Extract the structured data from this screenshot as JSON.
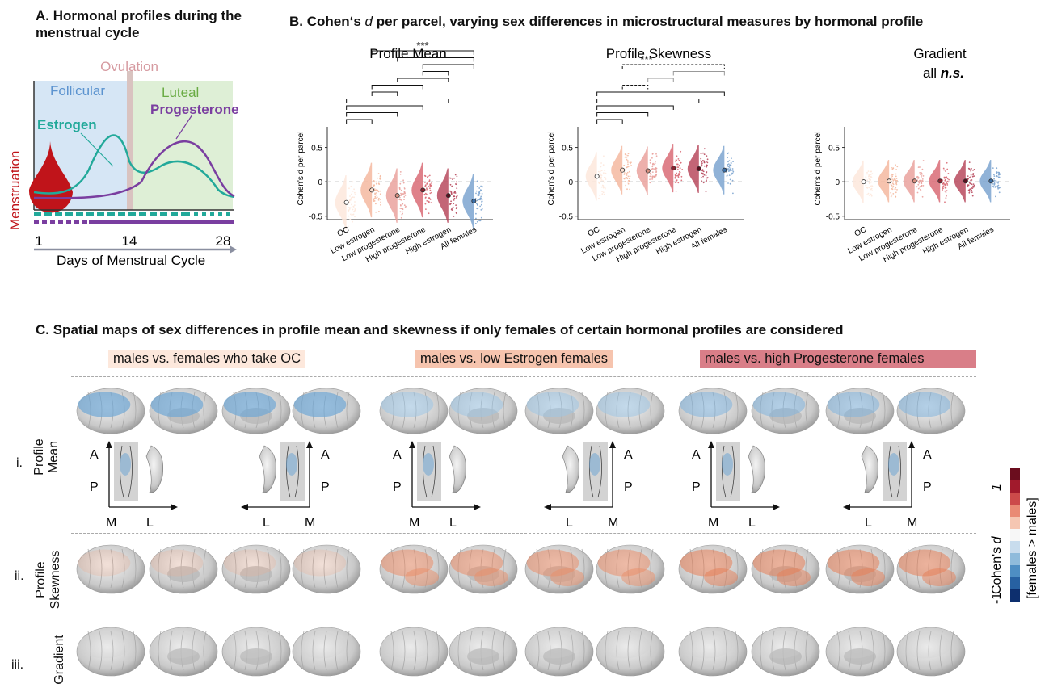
{
  "panelA": {
    "title": "A. Hormonal profiles during the menstrual cycle",
    "ovulation": "Ovulation",
    "follicular": "Follicular",
    "luteal": "Luteal",
    "estrogen": "Estrogen",
    "progesterone": "Progesterone",
    "menstruation": "Menstruation",
    "ticks": [
      "1",
      "14",
      "28"
    ],
    "xlabel": "Days of Menstrual Cycle"
  },
  "panelB": {
    "title": "B. Cohen‘s d per parcel, varying sex differences in microstructural measures by hormonal profile",
    "title_pre": "B. Cohen‘s ",
    "title_d": "d",
    "title_post": " per parcel, varying sex differences in microstructural measures by hormonal profile",
    "ylabel": "Cohen's d per parcel",
    "sig_label": "***",
    "gradient_note_pre": "all",
    "gradient_note": "n.s."
  },
  "chart_data": [
    {
      "type": "scatter",
      "title": "Profile Mean",
      "ylabel": "Cohen's d per parcel",
      "categories": [
        "OC",
        "Low estrogen",
        "Low progesterone",
        "High progesterone",
        "High estrogen",
        "All females"
      ],
      "values": [
        -0.3,
        -0.12,
        -0.2,
        -0.12,
        -0.2,
        -0.28
      ],
      "ylim": [
        -0.55,
        0.8
      ],
      "yticks": [
        -0.5,
        0,
        0.5
      ]
    },
    {
      "type": "scatter",
      "title": "Profile Skewness",
      "ylabel": "Cohen's d per parcel",
      "categories": [
        "OC",
        "Low estrogen",
        "Low progesterone",
        "High progesterone",
        "High estrogen",
        "All females"
      ],
      "values": [
        0.08,
        0.17,
        0.16,
        0.2,
        0.19,
        0.17
      ],
      "ylim": [
        -0.55,
        0.8
      ],
      "yticks": [
        -0.5,
        0,
        0.5
      ]
    },
    {
      "type": "scatter",
      "title": "Gradient",
      "ylabel": "Cohen's d per parcel",
      "categories": [
        "OC",
        "Low estrogen",
        "Low progesterone",
        "High progesterone",
        "High estrogen",
        "All females"
      ],
      "values": [
        0.0,
        0.01,
        0.01,
        0.01,
        0.01,
        0.01
      ],
      "ylim": [
        -0.55,
        0.8
      ],
      "yticks": [
        -0.5,
        0,
        0.5
      ]
    }
  ],
  "panelC": {
    "title": "C. Spatial maps of sex differences in profile mean and skewness if only females of certain hormonal profiles are considered",
    "groups": [
      "males vs. females who take OC",
      "males vs. low Estrogen females",
      "males vs. high Progesterone females"
    ],
    "rows": [
      {
        "roman": "i.",
        "label1": "Profile",
        "label2": "Mean"
      },
      {
        "roman": "ii.",
        "label1": "Profile",
        "label2": "Skewness"
      },
      {
        "roman": "iii.",
        "label1": "Gradient",
        "label2": ""
      }
    ],
    "axis_letters": {
      "A": "A",
      "P": "P",
      "M": "M",
      "L": "L"
    }
  },
  "colorbar": {
    "label_pre": "Cohen's ",
    "label_d": "d",
    "max": "1",
    "min": "-1",
    "sublabel": "[females > males]"
  },
  "colors": {
    "follicular_bg": "#d6e6f5",
    "luteal_bg": "#deefd6",
    "estrogen": "#22a99a",
    "progesterone": "#7a3ea0",
    "menstruation": "#c0141a",
    "ovulation": "#d69aa0",
    "groups": [
      "#fde8dc",
      "#f4b9a0",
      "#eaa29d",
      "#d96b75",
      "#b84a5e",
      "#7da5d0"
    ],
    "median_fill": [
      "#ffffff",
      "#fbe0d2",
      "#d89080",
      "#8a2432",
      "#5a0f1e",
      "#3b6fa8"
    ]
  }
}
